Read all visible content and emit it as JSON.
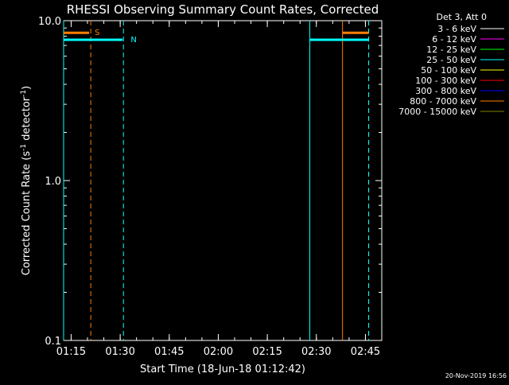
{
  "chart_data": {
    "type": "line",
    "title": "RHESSI Observing Summary Count Rates, Corrected",
    "xlabel": "Start Time (18-Jun-18 01:12:42)",
    "ylabel_main": "Corrected Count Rate (s",
    "ylabel_sup1": "-1",
    "ylabel_mid": " detector",
    "ylabel_sup2": "-1",
    "ylabel_end": ")",
    "y_scale": "log",
    "ylim": [
      0.1,
      10.0
    ],
    "y_ticks": [
      {
        "value": 0.1,
        "label": "0.1"
      },
      {
        "value": 1.0,
        "label": "1.0"
      },
      {
        "value": 10.0,
        "label": "10.0"
      }
    ],
    "xlim": [
      "01:12:42",
      "02:50:00"
    ],
    "x_ticks": [
      {
        "value": "01:15",
        "label": "01:15"
      },
      {
        "value": "01:30",
        "label": "01:30"
      },
      {
        "value": "01:45",
        "label": "01:45"
      },
      {
        "value": "02:00",
        "label": "02:00"
      },
      {
        "value": "02:15",
        "label": "02:15"
      },
      {
        "value": "02:30",
        "label": "02:30"
      },
      {
        "value": "02:45",
        "label": "02:45"
      }
    ],
    "legend": {
      "placement": "right",
      "header": "Det 3, Att 0",
      "entries": [
        {
          "label": "3 - 6 keV",
          "color": "#ffffff"
        },
        {
          "label": "6 - 12 keV",
          "color": "#ff00ff"
        },
        {
          "label": "12 - 25 keV",
          "color": "#00ff00"
        },
        {
          "label": "25 - 50 keV",
          "color": "#00ffff"
        },
        {
          "label": "50 - 100 keV",
          "color": "#ffff00"
        },
        {
          "label": "100 - 300 keV",
          "color": "#ff0000"
        },
        {
          "label": "300 - 800 keV",
          "color": "#0000ff"
        },
        {
          "label": "800 - 7000 keV",
          "color": "#ff8000"
        },
        {
          "label": "7000 - 15000 keV",
          "color": "#808000"
        }
      ]
    },
    "bars": [
      {
        "name": "S",
        "color": "#ff8000",
        "y": 8.4,
        "segments": [
          [
            "01:12:42",
            "01:20:30"
          ],
          [
            "02:38:00",
            "02:46:00"
          ]
        ],
        "label_at": "01:21:00"
      },
      {
        "name": "N",
        "color": "#00ffff",
        "y": 7.6,
        "segments": [
          [
            "01:12:42",
            "01:30:45"
          ],
          [
            "02:28:00",
            "02:46:00"
          ]
        ],
        "label_at": "01:32:00"
      }
    ],
    "vlines": [
      {
        "time": "01:12:42",
        "color": "#00ffff",
        "style": "solid"
      },
      {
        "time": "01:21:00",
        "color": "#ff8000",
        "style": "dashed"
      },
      {
        "time": "01:31:00",
        "color": "#00ffff",
        "style": "dashed"
      },
      {
        "time": "02:28:00",
        "color": "#00ffff",
        "style": "solid"
      },
      {
        "time": "02:38:00",
        "color": "#ff8000",
        "style": "solid"
      },
      {
        "time": "02:46:00",
        "color": "#ff8000",
        "style": "dashed"
      },
      {
        "time": "02:46:00",
        "color": "#00ffff",
        "style": "dashed"
      }
    ],
    "grid": false,
    "timestamp": "20-Nov-2019 16:56"
  }
}
